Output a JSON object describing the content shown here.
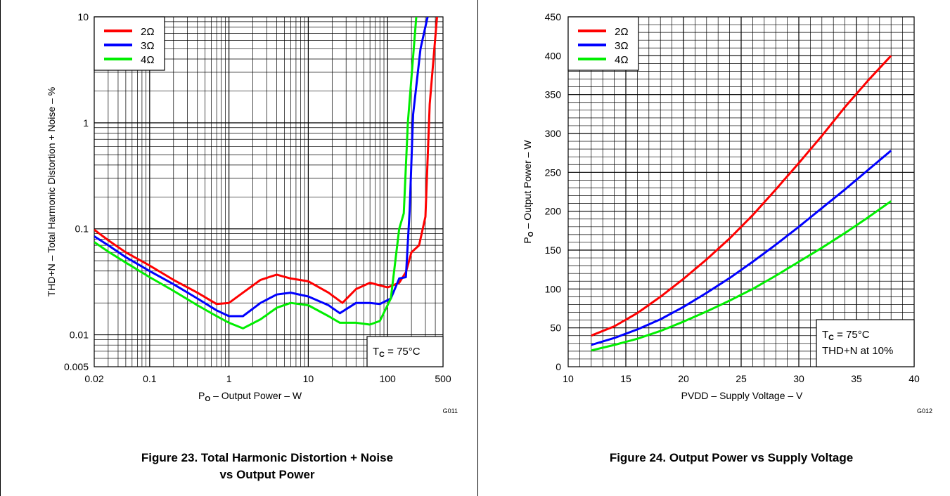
{
  "chart_data": [
    {
      "type": "line",
      "figure_code": "G011",
      "caption_lines": [
        "Figure 23. Total Harmonic Distortion + Noise",
        "vs Output Power"
      ],
      "xlabel_main": "P",
      "xlabel_sub": "O",
      "xlabel_rest": " – Output Power – W",
      "ylabel": "THD+N – Total Harmonic Distortion + Noise – %",
      "x_scale": "log",
      "y_scale": "log",
      "xlim": [
        0.02,
        500
      ],
      "ylim": [
        0.005,
        10
      ],
      "x_ticks": [
        {
          "value": 0.02,
          "label": "0.02"
        },
        {
          "value": 0.1,
          "label": "0.1"
        },
        {
          "value": 1,
          "label": "1"
        },
        {
          "value": 10,
          "label": "10"
        },
        {
          "value": 100,
          "label": "100"
        },
        {
          "value": 500,
          "label": "500"
        }
      ],
      "y_ticks": [
        {
          "value": 0.005,
          "label": "0.005"
        },
        {
          "value": 0.01,
          "label": "0.01"
        },
        {
          "value": 0.1,
          "label": "0.1"
        },
        {
          "value": 1,
          "label": "1"
        },
        {
          "value": 10,
          "label": "10"
        }
      ],
      "grid": true,
      "legend_position": "top-left",
      "annotation": {
        "main": "T",
        "sub": "C",
        "rest": " = 75°C"
      },
      "annotation_position": "bottom-right",
      "series": [
        {
          "name": "2Ω",
          "color": "#ff0000",
          "points": [
            [
              0.02,
              0.098
            ],
            [
              0.03,
              0.078
            ],
            [
              0.05,
              0.06
            ],
            [
              0.1,
              0.045
            ],
            [
              0.2,
              0.033
            ],
            [
              0.4,
              0.025
            ],
            [
              0.7,
              0.0195
            ],
            [
              1.0,
              0.02
            ],
            [
              1.5,
              0.025
            ],
            [
              2.5,
              0.033
            ],
            [
              4,
              0.037
            ],
            [
              6,
              0.034
            ],
            [
              10,
              0.032
            ],
            [
              18,
              0.025
            ],
            [
              27,
              0.02
            ],
            [
              40,
              0.027
            ],
            [
              60,
              0.031
            ],
            [
              100,
              0.028
            ],
            [
              140,
              0.031
            ],
            [
              170,
              0.039
            ],
            [
              200,
              0.06
            ],
            [
              250,
              0.07
            ],
            [
              300,
              0.13
            ],
            [
              340,
              1.5
            ],
            [
              420,
              10
            ]
          ]
        },
        {
          "name": "3Ω",
          "color": "#0000ff",
          "points": [
            [
              0.02,
              0.085
            ],
            [
              0.03,
              0.07
            ],
            [
              0.05,
              0.054
            ],
            [
              0.1,
              0.04
            ],
            [
              0.2,
              0.03
            ],
            [
              0.4,
              0.022
            ],
            [
              0.7,
              0.017
            ],
            [
              1.0,
              0.015
            ],
            [
              1.5,
              0.015
            ],
            [
              2.5,
              0.02
            ],
            [
              4,
              0.024
            ],
            [
              6,
              0.025
            ],
            [
              10,
              0.023
            ],
            [
              18,
              0.019
            ],
            [
              25,
              0.016
            ],
            [
              40,
              0.02
            ],
            [
              60,
              0.02
            ],
            [
              80,
              0.0195
            ],
            [
              110,
              0.022
            ],
            [
              140,
              0.034
            ],
            [
              170,
              0.035
            ],
            [
              190,
              0.15
            ],
            [
              210,
              1.2
            ],
            [
              260,
              5
            ],
            [
              320,
              10
            ]
          ]
        },
        {
          "name": "4Ω",
          "color": "#00ee00",
          "points": [
            [
              0.02,
              0.075
            ],
            [
              0.03,
              0.061
            ],
            [
              0.05,
              0.048
            ],
            [
              0.1,
              0.035
            ],
            [
              0.2,
              0.026
            ],
            [
              0.4,
              0.019
            ],
            [
              0.7,
              0.015
            ],
            [
              1.0,
              0.013
            ],
            [
              1.5,
              0.0115
            ],
            [
              2.5,
              0.014
            ],
            [
              4,
              0.018
            ],
            [
              6,
              0.02
            ],
            [
              10,
              0.019
            ],
            [
              18,
              0.015
            ],
            [
              25,
              0.013
            ],
            [
              40,
              0.013
            ],
            [
              60,
              0.0125
            ],
            [
              80,
              0.0135
            ],
            [
              110,
              0.022
            ],
            [
              140,
              0.1
            ],
            [
              160,
              0.14
            ],
            [
              180,
              1
            ],
            [
              230,
              10
            ]
          ]
        }
      ]
    },
    {
      "type": "line",
      "figure_code": "G012",
      "caption_lines": [
        "Figure 24. Output Power vs Supply Voltage"
      ],
      "xlabel": "PVDD – Supply Voltage – V",
      "ylabel_main": "P",
      "ylabel_sub": "O",
      "ylabel_rest": " – Output Power – W",
      "xlim": [
        10,
        40
      ],
      "ylim": [
        0,
        450
      ],
      "x_ticks": [
        10,
        15,
        20,
        25,
        30,
        35,
        40
      ],
      "y_ticks": [
        0,
        50,
        100,
        150,
        200,
        250,
        300,
        350,
        400,
        450
      ],
      "grid": true,
      "legend_position": "top-left",
      "annotation": {
        "main": "T",
        "sub": "C",
        "rest": " = 75°C",
        "line2": "THD+N at 10%"
      },
      "annotation_position": "bottom-right",
      "series": [
        {
          "name": "2Ω",
          "color": "#ff0000",
          "points": [
            [
              12,
              40
            ],
            [
              14,
              52
            ],
            [
              16,
              69
            ],
            [
              18,
              90
            ],
            [
              20,
              113
            ],
            [
              22,
              138
            ],
            [
              24,
              165
            ],
            [
              26,
              195
            ],
            [
              28,
              228
            ],
            [
              30,
              262
            ],
            [
              32,
              297
            ],
            [
              34,
              334
            ],
            [
              36,
              368
            ],
            [
              38,
              400
            ]
          ]
        },
        {
          "name": "3Ω",
          "color": "#0000ff",
          "points": [
            [
              12,
              28
            ],
            [
              14,
              37
            ],
            [
              16,
              48
            ],
            [
              18,
              61
            ],
            [
              20,
              77
            ],
            [
              22,
              95
            ],
            [
              24,
              114
            ],
            [
              26,
              135
            ],
            [
              28,
              157
            ],
            [
              30,
              180
            ],
            [
              32,
              204
            ],
            [
              34,
              228
            ],
            [
              36,
              253
            ],
            [
              38,
              278
            ]
          ]
        },
        {
          "name": "4Ω",
          "color": "#00ee00",
          "points": [
            [
              12,
              21
            ],
            [
              14,
              28
            ],
            [
              16,
              36
            ],
            [
              18,
              46
            ],
            [
              20,
              58
            ],
            [
              22,
              71
            ],
            [
              24,
              85
            ],
            [
              26,
              100
            ],
            [
              28,
              117
            ],
            [
              30,
              135
            ],
            [
              32,
              153
            ],
            [
              34,
              172
            ],
            [
              36,
              192
            ],
            [
              38,
              213
            ]
          ]
        }
      ]
    }
  ]
}
